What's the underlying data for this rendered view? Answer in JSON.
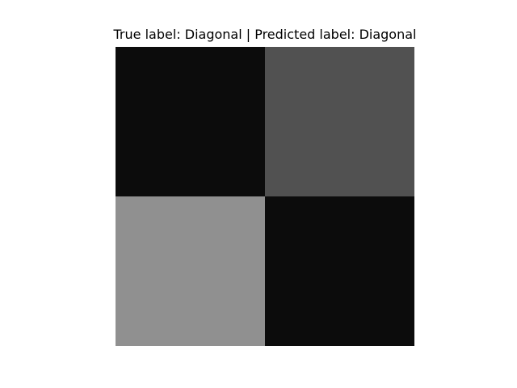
{
  "chart_data": {
    "type": "heatmap",
    "title": "True label: Diagonal | Predicted label: Diagonal",
    "rows": 2,
    "cols": 2,
    "values": [
      [
        0.04,
        0.32
      ],
      [
        0.57,
        0.04
      ]
    ],
    "cell_colors": [
      [
        "#0c0c0c",
        "#515151"
      ],
      [
        "#909090",
        "#0c0c0c"
      ]
    ],
    "colormap": "gray",
    "axes_visible": false,
    "grid": false
  }
}
